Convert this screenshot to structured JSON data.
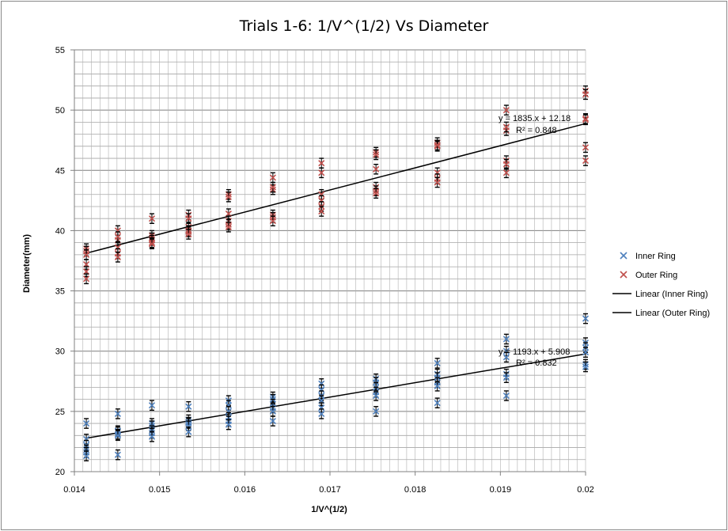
{
  "chart_data": {
    "type": "scatter",
    "title": "Trials 1-6: 1/V^(1/2) Vs Diameter",
    "xlabel": "1/V^(1/2)",
    "ylabel": "Diameter(mm)",
    "xlim": [
      0.014,
      0.02
    ],
    "ylim": [
      20,
      55
    ],
    "xticks": [
      "0.014",
      "0.015",
      "0.016",
      "0.017",
      "0.018",
      "0.019",
      "0.02"
    ],
    "yticks": [
      "20",
      "25",
      "30",
      "35",
      "40",
      "45",
      "50",
      "55"
    ],
    "grid": "horizontal",
    "legend_position": "right",
    "error_bar": 0.4,
    "series": [
      {
        "name": "Inner Ring",
        "marker": "x",
        "color": "#4f81bd",
        "x": [
          0.01414,
          0.01414,
          0.01414,
          0.01414,
          0.01414,
          0.01414,
          0.01451,
          0.01451,
          0.01451,
          0.01451,
          0.01451,
          0.01451,
          0.01491,
          0.01491,
          0.01491,
          0.01491,
          0.01491,
          0.01491,
          0.01534,
          0.01534,
          0.01534,
          0.01534,
          0.01534,
          0.01534,
          0.01581,
          0.01581,
          0.01581,
          0.01581,
          0.01581,
          0.01581,
          0.01633,
          0.01633,
          0.01633,
          0.01633,
          0.01633,
          0.01633,
          0.0169,
          0.0169,
          0.0169,
          0.0169,
          0.0169,
          0.0169,
          0.01754,
          0.01754,
          0.01754,
          0.01754,
          0.01754,
          0.01754,
          0.01826,
          0.01826,
          0.01826,
          0.01826,
          0.01826,
          0.01826,
          0.01907,
          0.01907,
          0.01907,
          0.01907,
          0.01907,
          0.01907,
          0.02,
          0.02,
          0.02,
          0.02,
          0.02,
          0.02
        ],
        "y": [
          24.0,
          22.7,
          22.2,
          21.8,
          21.6,
          21.3,
          24.8,
          23.4,
          23.3,
          23.1,
          23.0,
          21.4,
          25.5,
          24.0,
          23.8,
          23.4,
          23.2,
          22.9,
          25.4,
          24.3,
          24.1,
          24.0,
          23.8,
          23.3,
          25.9,
          25.5,
          25.0,
          24.5,
          24.2,
          23.9,
          26.2,
          26.0,
          25.6,
          25.3,
          25.0,
          24.2,
          27.3,
          26.8,
          26.3,
          25.9,
          25.3,
          24.8,
          27.7,
          27.4,
          27.0,
          26.6,
          26.3,
          25.0,
          29.0,
          28.1,
          27.8,
          27.4,
          27.1,
          25.7,
          31.0,
          30.0,
          29.5,
          28.1,
          27.8,
          26.3,
          32.7,
          30.7,
          30.3,
          29.9,
          28.9,
          28.7
        ]
      },
      {
        "name": "Outer Ring",
        "marker": "x",
        "color": "#c0504d",
        "x": [
          0.01414,
          0.01414,
          0.01414,
          0.01414,
          0.01414,
          0.01414,
          0.01451,
          0.01451,
          0.01451,
          0.01451,
          0.01451,
          0.01451,
          0.01491,
          0.01491,
          0.01491,
          0.01491,
          0.01491,
          0.01491,
          0.01534,
          0.01534,
          0.01534,
          0.01534,
          0.01534,
          0.01534,
          0.01581,
          0.01581,
          0.01581,
          0.01581,
          0.01581,
          0.01581,
          0.01633,
          0.01633,
          0.01633,
          0.01633,
          0.01633,
          0.01633,
          0.0169,
          0.0169,
          0.0169,
          0.0169,
          0.0169,
          0.0169,
          0.01754,
          0.01754,
          0.01754,
          0.01754,
          0.01754,
          0.01754,
          0.01826,
          0.01826,
          0.01826,
          0.01826,
          0.01826,
          0.01826,
          0.01907,
          0.01907,
          0.01907,
          0.01907,
          0.01907,
          0.01907,
          0.02,
          0.02,
          0.02,
          0.02,
          0.02,
          0.02
        ],
        "y": [
          38.5,
          38.3,
          37.2,
          36.6,
          36.0,
          38.0,
          40.0,
          39.2,
          38.6,
          38.1,
          37.8,
          39.5,
          41.0,
          39.6,
          39.4,
          39.2,
          39.0,
          38.9,
          41.3,
          40.3,
          40.0,
          39.9,
          39.7,
          41.0,
          43.0,
          42.8,
          41.4,
          40.8,
          40.5,
          40.3,
          44.4,
          43.4,
          41.3,
          41.1,
          40.8,
          43.6,
          45.6,
          44.8,
          43.0,
          42.5,
          42.0,
          41.6,
          46.5,
          45.1,
          43.6,
          43.3,
          43.1,
          46.3,
          47.3,
          47.0,
          44.8,
          44.3,
          44.0,
          47.1,
          50.0,
          48.3,
          45.8,
          45.5,
          44.8,
          48.6,
          51.6,
          51.3,
          49.3,
          46.9,
          45.8,
          49.2
        ]
      }
    ],
    "trendlines": [
      {
        "name": "Linear (Inner Ring)",
        "slope": 1193,
        "intercept": 5.908,
        "equation": "y = 1193.x + 5.908",
        "r2": "R² = 0.832"
      },
      {
        "name": "Linear (Outer Ring)",
        "slope": 1835,
        "intercept": 12.18,
        "equation": "y = 1835.x + 12.18",
        "r2": "R² = 0.848"
      }
    ]
  }
}
